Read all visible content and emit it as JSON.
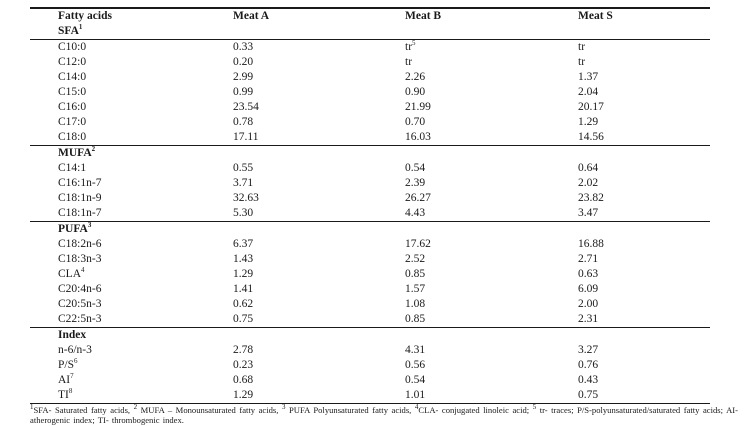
{
  "page": {
    "background": "#ffffff",
    "text_color": "#1a1a1a"
  },
  "table": {
    "columns": [
      "Fatty acids",
      "Meat A",
      "Meat B",
      "Meat S"
    ],
    "header_sub_label": "SFA^1",
    "sections": [
      {
        "header": null,
        "rows": [
          [
            "C10:0",
            "0.33",
            "tr^5",
            "tr"
          ],
          [
            "C12:0",
            "0.20",
            "tr",
            "tr"
          ],
          [
            "C14:0",
            "2.99",
            "2.26",
            "1.37"
          ],
          [
            "C15:0",
            "0.99",
            "0.90",
            "2.04"
          ],
          [
            "C16:0",
            "23.54",
            "21.99",
            "20.17"
          ],
          [
            "C17:0",
            "0.78",
            "0.70",
            "1.29"
          ],
          [
            "C18:0",
            "17.11",
            "16.03",
            "14.56"
          ]
        ]
      },
      {
        "header": "MUFA^2",
        "rows": [
          [
            "C14:1",
            "0.55",
            "0.54",
            "0.64"
          ],
          [
            "C16:1n-7",
            "3.71",
            "2.39",
            "2.02"
          ],
          [
            "C18:1n-9",
            "32.63",
            "26.27",
            "23.82"
          ],
          [
            "C18:1n-7",
            "5.30",
            "4.43",
            "3.47"
          ]
        ]
      },
      {
        "header": "PUFA^3",
        "rows": [
          [
            "C18:2n-6",
            "6.37",
            "17.62",
            "16.88"
          ],
          [
            "C18:3n-3",
            "1.43",
            "2.52",
            "2.71"
          ],
          [
            "CLA^4",
            "1.29",
            "0.85",
            "0.63"
          ],
          [
            "C20:4n-6",
            "1.41",
            "1.57",
            "6.09"
          ],
          [
            "C20:5n-3",
            "0.62",
            "1.08",
            "2.00"
          ],
          [
            "C22:5n-3",
            "0.75",
            "0.85",
            "2.31"
          ]
        ]
      },
      {
        "header": "Index",
        "rows": [
          [
            "n-6/n-3",
            "2.78",
            "4.31",
            "3.27"
          ],
          [
            "P/S^6",
            "0.23",
            "0.56",
            "0.76"
          ],
          [
            "AI^7",
            "0.68",
            "0.54",
            "0.43"
          ],
          [
            "TI^8",
            "1.29",
            "1.01",
            "0.75"
          ]
        ]
      }
    ]
  },
  "footnote": "^1SFA- Saturated fatty acids, ^2 MUFA – Monounsaturated fatty acids, ^3 PUFA Polyunsaturated fatty acids, ^4CLA- conjugated linoleic acid; ^5 tr- traces; P/S-polyunsaturated/saturated fatty acids; AI-atherogenic index; TI- thrombogenic index."
}
